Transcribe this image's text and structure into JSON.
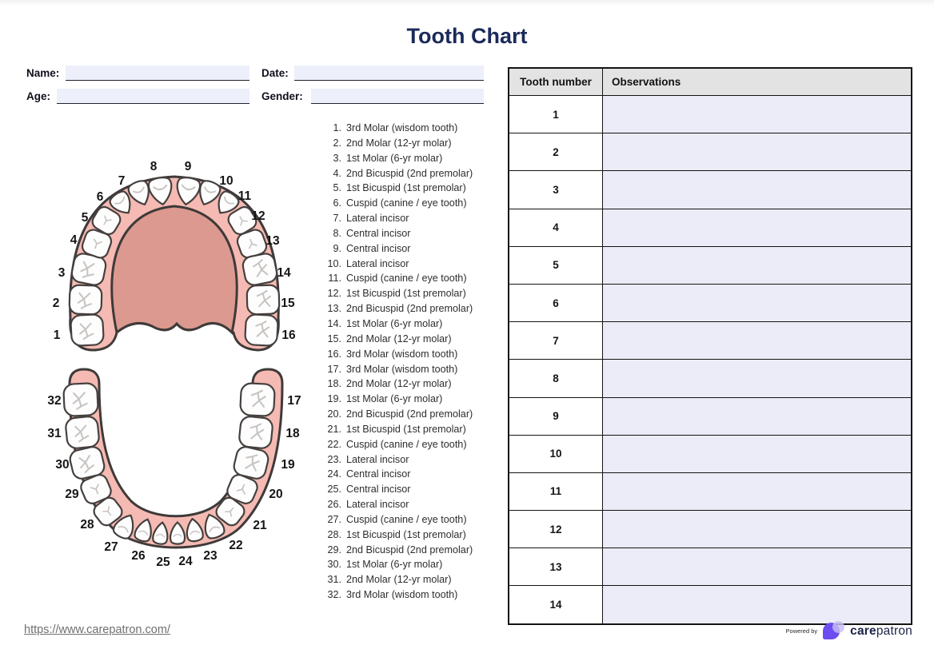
{
  "title": "Tooth Chart",
  "form": {
    "name_label": "Name:",
    "name_value": "",
    "date_label": "Date:",
    "date_value": "",
    "age_label": "Age:",
    "age_value": "",
    "gender_label": "Gender:",
    "gender_value": ""
  },
  "diagram": {
    "upper_numbers": [
      "1",
      "2",
      "3",
      "4",
      "5",
      "6",
      "7",
      "8",
      "9",
      "10",
      "11",
      "12",
      "13",
      "14",
      "15",
      "16"
    ],
    "lower_numbers": [
      "17",
      "18",
      "19",
      "20",
      "21",
      "22",
      "23",
      "24",
      "25",
      "26",
      "27",
      "28",
      "29",
      "30",
      "31",
      "32"
    ]
  },
  "tooth_list": [
    {
      "num": "1.",
      "label": "3rd Molar (wisdom tooth)"
    },
    {
      "num": "2.",
      "label": "2nd Molar (12-yr molar)"
    },
    {
      "num": "3.",
      "label": "1st Molar (6-yr molar)"
    },
    {
      "num": "4.",
      "label": "2nd Bicuspid (2nd premolar)"
    },
    {
      "num": "5.",
      "label": "1st Bicuspid (1st premolar)"
    },
    {
      "num": "6.",
      "label": "Cuspid (canine / eye tooth)"
    },
    {
      "num": "7.",
      "label": "Lateral incisor"
    },
    {
      "num": "8.",
      "label": "Central incisor"
    },
    {
      "num": "9.",
      "label": "Central incisor"
    },
    {
      "num": "10.",
      "label": "Lateral incisor"
    },
    {
      "num": "11.",
      "label": "Cuspid (canine / eye tooth)"
    },
    {
      "num": "12.",
      "label": "1st Bicuspid (1st premolar)"
    },
    {
      "num": "13.",
      "label": "2nd Bicuspid (2nd premolar)"
    },
    {
      "num": "14.",
      "label": "1st Molar (6-yr molar)"
    },
    {
      "num": "15.",
      "label": "2nd Molar (12-yr molar)"
    },
    {
      "num": "16.",
      "label": "3rd Molar (wisdom tooth)"
    },
    {
      "num": "17.",
      "label": "3rd Molar (wisdom tooth)"
    },
    {
      "num": "18.",
      "label": "2nd Molar (12-yr molar)"
    },
    {
      "num": "19.",
      "label": "1st Molar (6-yr molar)"
    },
    {
      "num": "20.",
      "label": "2nd Bicuspid (2nd premolar)"
    },
    {
      "num": "21.",
      "label": "1st Bicuspid (1st premolar)"
    },
    {
      "num": "22.",
      "label": "Cuspid (canine / eye tooth)"
    },
    {
      "num": "23.",
      "label": "Lateral incisor"
    },
    {
      "num": "24.",
      "label": "Central incisor"
    },
    {
      "num": "25.",
      "label": "Central incisor"
    },
    {
      "num": "26.",
      "label": "Lateral incisor"
    },
    {
      "num": "27.",
      "label": "Cuspid (canine / eye tooth)"
    },
    {
      "num": "28.",
      "label": "1st Bicuspid (1st premolar)"
    },
    {
      "num": "29.",
      "label": "2nd Bicuspid (2nd premolar)"
    },
    {
      "num": "30.",
      "label": "1st Molar (6-yr molar)"
    },
    {
      "num": "31.",
      "label": "2nd Molar (12-yr molar)"
    },
    {
      "num": "32.",
      "label": "3rd Molar (wisdom tooth)"
    }
  ],
  "table": {
    "headers": [
      "Tooth number",
      "Observations"
    ],
    "rows": [
      {
        "tooth_number": "1",
        "observations": ""
      },
      {
        "tooth_number": "2",
        "observations": ""
      },
      {
        "tooth_number": "3",
        "observations": ""
      },
      {
        "tooth_number": "4",
        "observations": ""
      },
      {
        "tooth_number": "5",
        "observations": ""
      },
      {
        "tooth_number": "6",
        "observations": ""
      },
      {
        "tooth_number": "7",
        "observations": ""
      },
      {
        "tooth_number": "8",
        "observations": ""
      },
      {
        "tooth_number": "9",
        "observations": ""
      },
      {
        "tooth_number": "10",
        "observations": ""
      },
      {
        "tooth_number": "11",
        "observations": ""
      },
      {
        "tooth_number": "12",
        "observations": ""
      },
      {
        "tooth_number": "13",
        "observations": ""
      },
      {
        "tooth_number": "14",
        "observations": ""
      }
    ]
  },
  "footer": {
    "url": "https://www.carepatron.com/",
    "powered_by": "Powered by",
    "brand_bold": "care",
    "brand_rest": "patron"
  },
  "colors": {
    "title_navy": "#1b2a5b",
    "gum_pink": "#f5bab3",
    "palate_pink": "#dc998f",
    "outline": "#3e3a39",
    "input_bg": "#edeffa",
    "table_header_bg": "#e3e3e3",
    "observation_cell_bg": "#ebecf8",
    "logo_purple": "#6c4df0",
    "logo_lavender": "#c9bdf4"
  }
}
